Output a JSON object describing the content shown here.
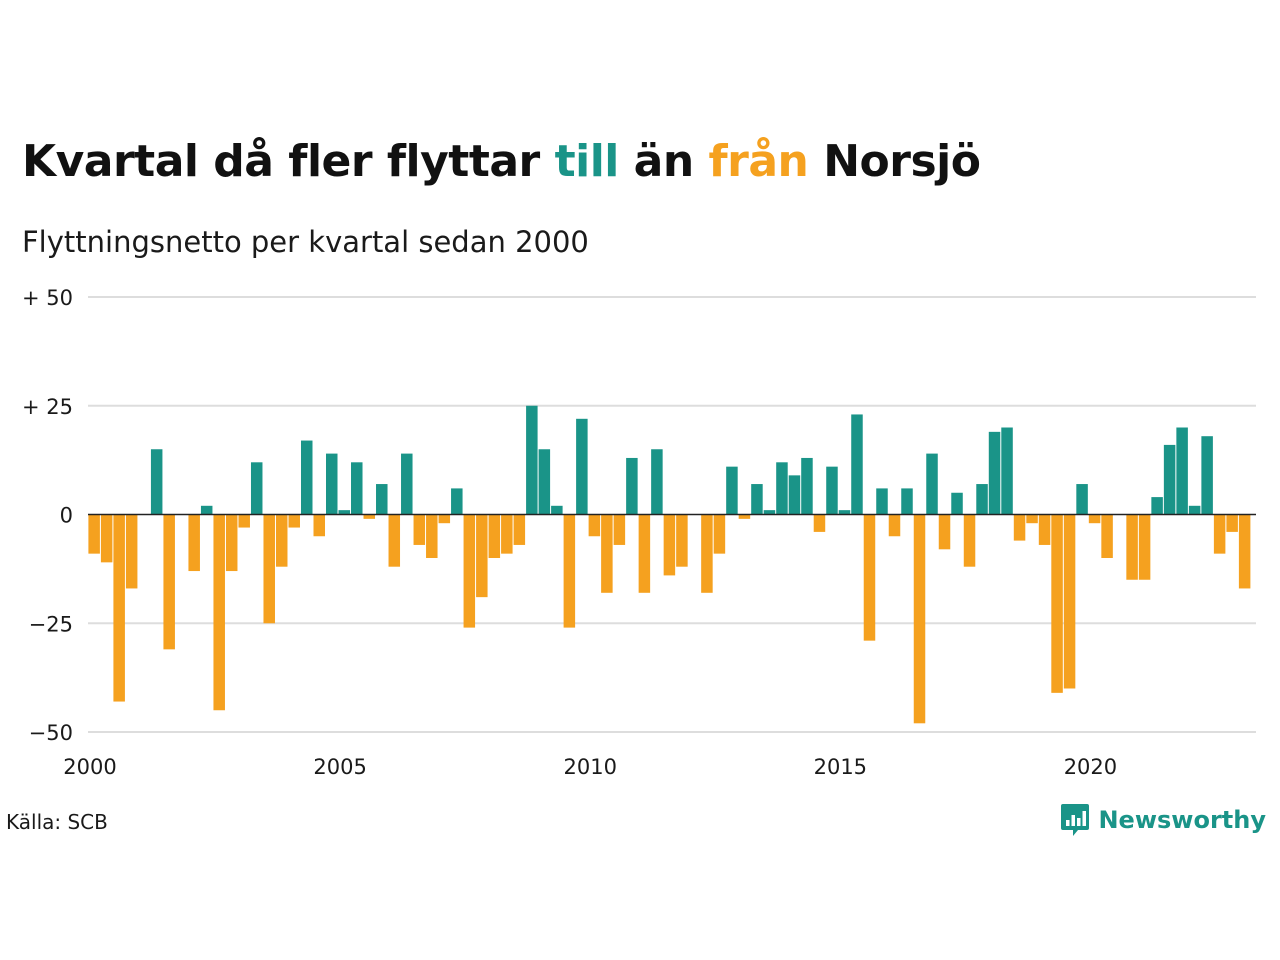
{
  "title": {
    "part1": "Kvartal då fler flyttar ",
    "till": "till",
    "part2": " än ",
    "fran": "från",
    "part3": " Norsjö"
  },
  "subtitle": "Flyttningsnetto per kvartal sedan 2000",
  "source": "Källa: SCB",
  "brand": {
    "name": "Newsworthy",
    "icon": "newsworthy-logo-icon"
  },
  "colors": {
    "positive": "#1a9488",
    "negative": "#f5a11f",
    "grid": "#dddddd",
    "axis": "#222222"
  },
  "chart_data": {
    "type": "bar",
    "title": "Kvartal då fler flyttar till än från Norsjö",
    "subtitle": "Flyttningsnetto per kvartal sedan 2000",
    "x_start": 2000,
    "step": 0.25,
    "xticks": [
      "2000",
      "2005",
      "2010",
      "2015",
      "2020"
    ],
    "yticks": [
      "−50",
      "−25",
      "0",
      "+ 25",
      "+ 50"
    ],
    "ylim": [
      -50,
      50
    ],
    "values": [
      -9,
      -11,
      -43,
      -17,
      0,
      15,
      -31,
      0,
      -13,
      2,
      -45,
      -13,
      -3,
      12,
      -25,
      -12,
      -3,
      17,
      -5,
      14,
      1,
      12,
      -1,
      7,
      -12,
      14,
      -7,
      -10,
      -2,
      6,
      -26,
      -19,
      -10,
      -9,
      -7,
      25,
      15,
      2,
      -26,
      22,
      -5,
      -18,
      -7,
      13,
      -18,
      15,
      -14,
      -12,
      0,
      -18,
      -9,
      11,
      -1,
      7,
      1,
      12,
      9,
      13,
      -4,
      11,
      1,
      23,
      -29,
      6,
      -5,
      6,
      -48,
      14,
      -8,
      5,
      -12,
      7,
      19,
      20,
      -6,
      -2,
      -7,
      -41,
      -40,
      7,
      -2,
      -10,
      0,
      -15,
      -15,
      4,
      16,
      20,
      2,
      18,
      -9,
      -4,
      -17
    ]
  }
}
